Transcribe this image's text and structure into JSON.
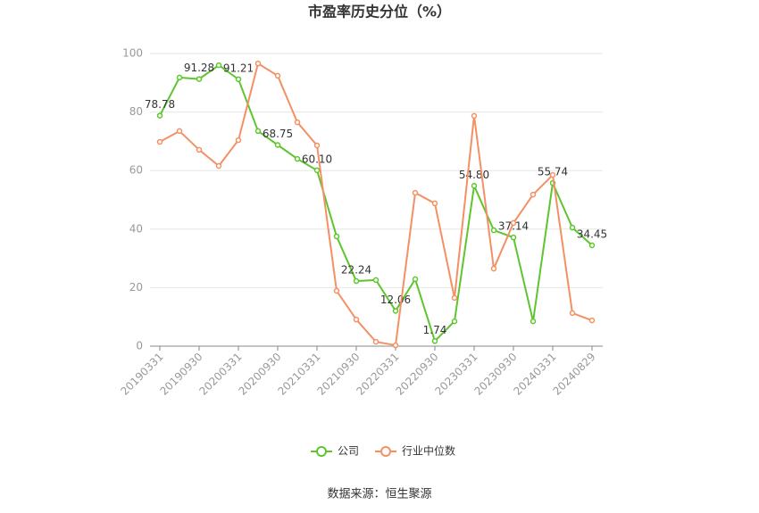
{
  "chart_data": {
    "type": "line",
    "title": "市盈率历史分位（%）",
    "source": "数据来源：恒生聚源",
    "categories": [
      "20190331",
      null,
      "20190930",
      null,
      "20200331",
      null,
      "20200930",
      null,
      "20210331",
      null,
      "20210930",
      null,
      "20220331",
      null,
      "20220930",
      null,
      "20230331",
      null,
      "20230930",
      null,
      "20240331",
      null,
      "20240829"
    ],
    "series": [
      {
        "name": "公司",
        "color": "#5ec52f",
        "values": [
          78.78,
          91.8,
          91.28,
          96.0,
          91.21,
          73.5,
          68.75,
          64.0,
          60.1,
          37.5,
          22.24,
          22.6,
          12.06,
          22.9,
          1.74,
          8.5,
          54.8,
          39.6,
          37.14,
          8.5,
          55.74,
          40.5,
          34.45
        ],
        "value_labels": [
          "78.78",
          null,
          "91.28",
          null,
          "91.21",
          null,
          "68.75",
          null,
          "60.10",
          null,
          "22.24",
          null,
          "12.06",
          null,
          "1.74",
          null,
          "54.80",
          null,
          "37.14",
          null,
          "55.74",
          null,
          "34.45"
        ]
      },
      {
        "name": "行业中位数",
        "color": "#f39064",
        "values": [
          69.8,
          73.5,
          67.1,
          61.6,
          70.4,
          96.6,
          92.4,
          76.5,
          68.6,
          18.9,
          9.1,
          1.5,
          0.3,
          52.4,
          48.8,
          16.5,
          78.7,
          26.5,
          42.1,
          51.8,
          58.5,
          11.3,
          8.8
        ]
      }
    ],
    "ylim": [
      0,
      100
    ],
    "yticks": [
      0,
      20,
      40,
      60,
      80,
      100
    ],
    "grid": true
  }
}
